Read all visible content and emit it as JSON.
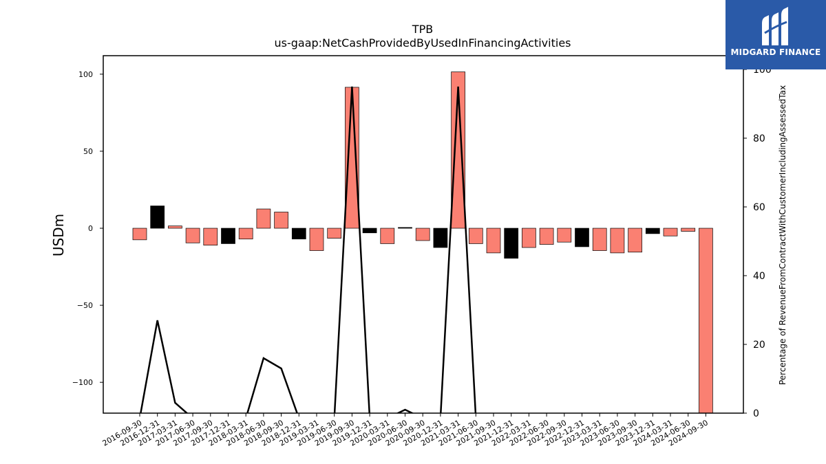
{
  "logo": {
    "text": "MIDGARD FINANCE",
    "color": "#2a5aa8"
  },
  "chart_data": {
    "type": "bar",
    "title": "TPB",
    "subtitle": "us-gaap:NetCashProvidedByUsedInFinancingActivities",
    "ylabel": "USDm",
    "y2label": "Percentage of RevenueFromContractWithCustomerIncludingAssessedTax",
    "ylim": [
      -120,
      112
    ],
    "y2lim": [
      0,
      104
    ],
    "yticks": [
      -100,
      -50,
      0,
      50,
      100
    ],
    "y2ticks": [
      0,
      20,
      40,
      60,
      80,
      100
    ],
    "categories": [
      "2016-09-30",
      "2016-12-31",
      "2017-03-31",
      "2017-06-30",
      "2017-09-30",
      "2017-12-31",
      "2018-03-31",
      "2018-06-30",
      "2018-09-30",
      "2018-12-31",
      "2019-03-31",
      "2019-06-30",
      "2019-09-30",
      "2019-12-31",
      "2020-03-31",
      "2020-06-30",
      "2020-09-30",
      "2020-12-31",
      "2021-03-31",
      "2021-06-30",
      "2021-09-30",
      "2021-12-31",
      "2022-03-31",
      "2022-06-30",
      "2022-09-30",
      "2022-12-31",
      "2023-03-31",
      "2023-06-30",
      "2023-09-30",
      "2023-12-31",
      "2024-03-31",
      "2024-06-30",
      "2024-09-30"
    ],
    "series": [
      {
        "type": "bar",
        "values": [
          -7.5,
          14.5,
          1.5,
          -9.5,
          -11,
          -10,
          -7,
          12.5,
          10.5,
          -7,
          -14.5,
          -6.5,
          91.5,
          -3,
          -10,
          0.5,
          -8,
          -12.5,
          101.5,
          -10,
          -16,
          -19.5,
          -12.5,
          -10.5,
          -9,
          -12,
          -14.5,
          -16,
          -15.5,
          -3.5,
          -5,
          -2,
          -122
        ],
        "colors": [
          "#fa8072",
          "#000000",
          "#fa8072",
          "#fa8072",
          "#fa8072",
          "#000000",
          "#fa8072",
          "#fa8072",
          "#fa8072",
          "#000000",
          "#fa8072",
          "#fa8072",
          "#fa8072",
          "#000000",
          "#fa8072",
          "#000000",
          "#fa8072",
          "#000000",
          "#fa8072",
          "#fa8072",
          "#fa8072",
          "#000000",
          "#fa8072",
          "#fa8072",
          "#fa8072",
          "#000000",
          "#fa8072",
          "#fa8072",
          "#fa8072",
          "#000000",
          "#fa8072",
          "#fa8072",
          "#fa8072"
        ]
      },
      {
        "type": "line",
        "axis": "secondary",
        "color": "#000000",
        "values": [
          null,
          27,
          3,
          null,
          null,
          null,
          null,
          16,
          13,
          null,
          null,
          null,
          95,
          null,
          null,
          1,
          null,
          null,
          95,
          null,
          null,
          null,
          null,
          null,
          null,
          null,
          null,
          null,
          null,
          null,
          null,
          null,
          null
        ]
      }
    ]
  }
}
